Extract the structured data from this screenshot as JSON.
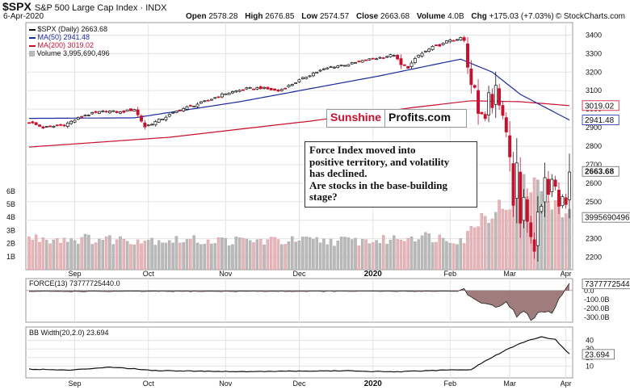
{
  "header": {
    "symbol": "$SPX",
    "name": "S&P 500 Large Cap Index",
    "exchange": "INDX",
    "date": "6-Apr-2020",
    "ohlc": {
      "open_label": "Open",
      "open": "2578.28",
      "high_label": "High",
      "high": "2676.85",
      "low_label": "Low",
      "low": "2574.57",
      "close_label": "Close",
      "close": "2663.68",
      "volume_label": "Volume",
      "volume": "4.0B",
      "chg_label": "Chg",
      "chg": "+175.03 (+7.03%)"
    },
    "copyright": "© StockCharts.com"
  },
  "colors": {
    "ma50": "#1c2a9e",
    "ma200": "#c8102e",
    "up_candle": "#111111",
    "down_candle": "#c8102e",
    "volume_up": "#b9b9b9",
    "volume_down": "#e7b4b8",
    "force_fill": "#8f6566",
    "grid": "#e3e3e3"
  },
  "legend": {
    "price": "$SPX (Daily) 2663.68",
    "ma50": "MA(50) 2941.48",
    "ma200": "MA(200) 3019.02",
    "volume": "Volume 3,995,690,496",
    "force": "FORCE(13) 73777725440.0",
    "bbw": "BB Width(20,2.0) 23.694"
  },
  "badges": {
    "ma200": "3019.02",
    "ma50": "2941.48",
    "close": "2663.68",
    "volume": "3995690496",
    "force": "73777725440",
    "bbw": "23.694"
  },
  "logo": {
    "part1": "Sunshine",
    "part2": "Profits.com"
  },
  "annotation": {
    "lines": [
      "Force Index moved into",
      "positive territory, and volatility",
      "has declined.",
      "Are stocks in the base-building",
      "stage?"
    ]
  },
  "chart_data": [
    {
      "type": "candlestick",
      "title": "$SPX (Daily) 2663.68",
      "x_months": [
        "Sep",
        "Oct",
        "Nov",
        "Dec",
        "2020",
        "Feb",
        "Mar",
        "Apr"
      ],
      "ylim": [
        2150,
        3450
      ],
      "y_ticks": [
        2200,
        2300,
        2400,
        2500,
        2600,
        2700,
        2800,
        2900,
        3000,
        3100,
        3200,
        3300,
        3400
      ],
      "close_anchors": [
        [
          0,
          2930
        ],
        [
          4,
          2900
        ],
        [
          10,
          2915
        ],
        [
          16,
          2968
        ],
        [
          22,
          2990
        ],
        [
          26,
          2982
        ],
        [
          30,
          3000
        ],
        [
          33,
          2905
        ],
        [
          37,
          2940
        ],
        [
          43,
          2997
        ],
        [
          50,
          3040
        ],
        [
          56,
          3085
        ],
        [
          62,
          3110
        ],
        [
          66,
          3115
        ],
        [
          71,
          3098
        ],
        [
          76,
          3145
        ],
        [
          81,
          3195
        ],
        [
          86,
          3228
        ],
        [
          88,
          3234
        ],
        [
          92,
          3246
        ],
        [
          97,
          3268
        ],
        [
          101,
          3282
        ],
        [
          104,
          3294
        ],
        [
          106,
          3238
        ],
        [
          108,
          3226
        ],
        [
          111,
          3290
        ],
        [
          115,
          3334
        ],
        [
          118,
          3352
        ],
        [
          120,
          3376
        ],
        [
          122,
          3370
        ],
        [
          123,
          3386
        ],
        [
          124,
          3368
        ],
        [
          125,
          3225
        ],
        [
          126,
          3129
        ],
        [
          127,
          3116
        ],
        [
          128,
          2979
        ],
        [
          129,
          2978
        ],
        [
          130,
          2954
        ],
        [
          131,
          3090
        ],
        [
          132,
          3003
        ],
        [
          133,
          3130
        ],
        [
          134,
          3024
        ],
        [
          135,
          2972
        ],
        [
          136,
          2882
        ],
        [
          137,
          2741
        ],
        [
          138,
          2480
        ],
        [
          139,
          2711
        ],
        [
          140,
          2386
        ],
        [
          141,
          2529
        ],
        [
          142,
          2398
        ],
        [
          143,
          2305
        ],
        [
          144,
          2237
        ],
        [
          145,
          2447
        ],
        [
          146,
          2475
        ],
        [
          147,
          2630
        ],
        [
          148,
          2541
        ],
        [
          149,
          2626
        ],
        [
          150,
          2584
        ],
        [
          151,
          2470
        ],
        [
          152,
          2527
        ],
        [
          153,
          2488
        ],
        [
          154,
          2664
        ]
      ],
      "series": [
        {
          "name": "MA(50)",
          "last": 2941.48,
          "points": [
            [
              0,
              2950
            ],
            [
              30,
              2953
            ],
            [
              60,
              3040
            ],
            [
              100,
              3180
            ],
            [
              123,
              3270
            ],
            [
              132,
              3200
            ],
            [
              140,
              3080
            ],
            [
              154,
              2941
            ]
          ]
        },
        {
          "name": "MA(200)",
          "last": 3019.02,
          "points": [
            [
              0,
              2795
            ],
            [
              40,
              2848
            ],
            [
              80,
              2935
            ],
            [
              110,
              3010
            ],
            [
              126,
              3045
            ],
            [
              140,
              3040
            ],
            [
              154,
              3019
            ]
          ]
        }
      ],
      "volume": {
        "name": "Volume",
        "unit": "B",
        "y_ticks": [
          "1B",
          "2B",
          "3B",
          "4B",
          "5B",
          "6B"
        ],
        "anchors": [
          [
            0,
            2.4
          ],
          [
            60,
            2.2
          ],
          [
            100,
            2.2
          ],
          [
            110,
            2.6
          ],
          [
            124,
            2.3
          ],
          [
            128,
            3.9
          ],
          [
            136,
            5.0
          ],
          [
            140,
            6.4
          ],
          [
            146,
            6.3
          ],
          [
            150,
            5.2
          ],
          [
            154,
            4.0
          ]
        ]
      }
    },
    {
      "type": "area",
      "title": "FORCE(13) 73777725440.0",
      "unit": "B",
      "y_ticks": [
        "0.0",
        "-100.0B",
        "-200.0B",
        "-300.0B"
      ],
      "ylim": [
        -320,
        80
      ],
      "anchors": [
        [
          0,
          -10
        ],
        [
          122,
          -8
        ],
        [
          124,
          20
        ],
        [
          126,
          -80
        ],
        [
          129,
          -160
        ],
        [
          133,
          -170
        ],
        [
          136,
          -140
        ],
        [
          139,
          -280
        ],
        [
          141,
          -230
        ],
        [
          143,
          -320
        ],
        [
          146,
          -240
        ],
        [
          149,
          -260
        ],
        [
          152,
          -30
        ],
        [
          154,
          74
        ]
      ]
    },
    {
      "type": "line",
      "title": "BB Width(20,2.0) 23.694",
      "y_ticks": [
        10,
        20,
        30,
        40
      ],
      "ylim": [
        0,
        50
      ],
      "anchors": [
        [
          0,
          6.5
        ],
        [
          12,
          5.2
        ],
        [
          23,
          9.0
        ],
        [
          36,
          4.8
        ],
        [
          60,
          3.6
        ],
        [
          90,
          4.5
        ],
        [
          104,
          3.2
        ],
        [
          118,
          5.2
        ],
        [
          126,
          6
        ],
        [
          130,
          16
        ],
        [
          136,
          29
        ],
        [
          142,
          40
        ],
        [
          146,
          44
        ],
        [
          150,
          41
        ],
        [
          154,
          24
        ]
      ]
    }
  ]
}
